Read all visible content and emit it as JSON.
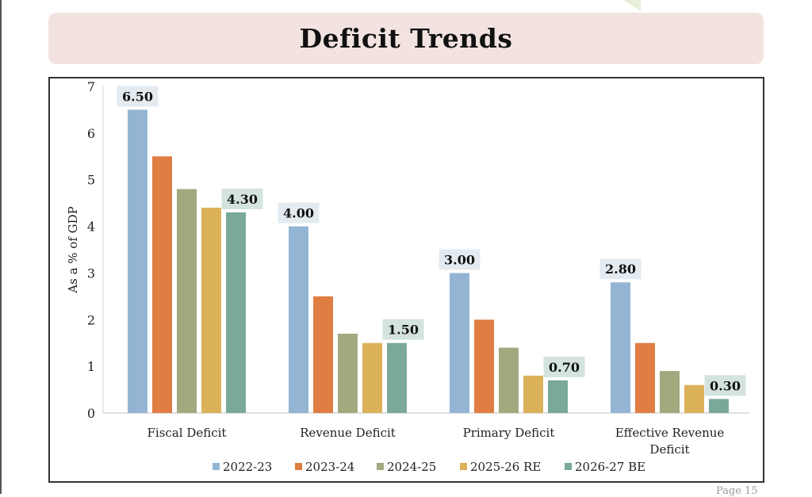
{
  "page": {
    "page_label": "Page 15"
  },
  "chart_data": {
    "type": "bar",
    "title": "Deficit Trends",
    "ylabel": "As a % of GDP",
    "xlabel": "",
    "ylim": [
      0,
      7
    ],
    "yticks": [
      "0",
      "1",
      "2",
      "3",
      "4",
      "5",
      "6",
      "7"
    ],
    "grid": false,
    "legend_position": "bottom",
    "categories": [
      "Fiscal Deficit",
      "Revenue Deficit",
      "Primary Deficit",
      "Effective Revenue Deficit"
    ],
    "category_lines": [
      [
        "Fiscal Deficit"
      ],
      [
        "Revenue Deficit"
      ],
      [
        "Primary Deficit"
      ],
      [
        "Effective Revenue",
        "Deficit"
      ]
    ],
    "series": [
      {
        "name": "2022-23",
        "color": "#93b5d3",
        "values": [
          6.5,
          4.0,
          3.0,
          2.8
        ]
      },
      {
        "name": "2023-24",
        "color": "#df7d43",
        "values": [
          5.5,
          2.5,
          2.0,
          1.5
        ]
      },
      {
        "name": "2024-25",
        "color": "#a3a97e",
        "values": [
          4.8,
          1.7,
          1.4,
          0.9
        ]
      },
      {
        "name": "2025-26 RE",
        "color": "#dbb15a",
        "values": [
          4.4,
          1.5,
          0.8,
          0.6
        ]
      },
      {
        "name": "2026-27 BE",
        "color": "#7aa89a",
        "values": [
          4.3,
          1.5,
          0.7,
          0.3
        ]
      }
    ],
    "data_labels": [
      {
        "series": 0,
        "category": 0,
        "text": "6.50",
        "bg": "#e3ebf1"
      },
      {
        "series": 4,
        "category": 0,
        "text": "4.30",
        "bg": "#d4e3de"
      },
      {
        "series": 0,
        "category": 1,
        "text": "4.00",
        "bg": "#e3ebf1"
      },
      {
        "series": 4,
        "category": 1,
        "text": "1.50",
        "bg": "#d4e3de"
      },
      {
        "series": 0,
        "category": 2,
        "text": "3.00",
        "bg": "#e3ebf1"
      },
      {
        "series": 4,
        "category": 2,
        "text": "0.70",
        "bg": "#d4e3de"
      },
      {
        "series": 0,
        "category": 3,
        "text": "2.80",
        "bg": "#e3ebf1"
      },
      {
        "series": 4,
        "category": 3,
        "text": "0.30",
        "bg": "#d4e3de"
      }
    ]
  }
}
